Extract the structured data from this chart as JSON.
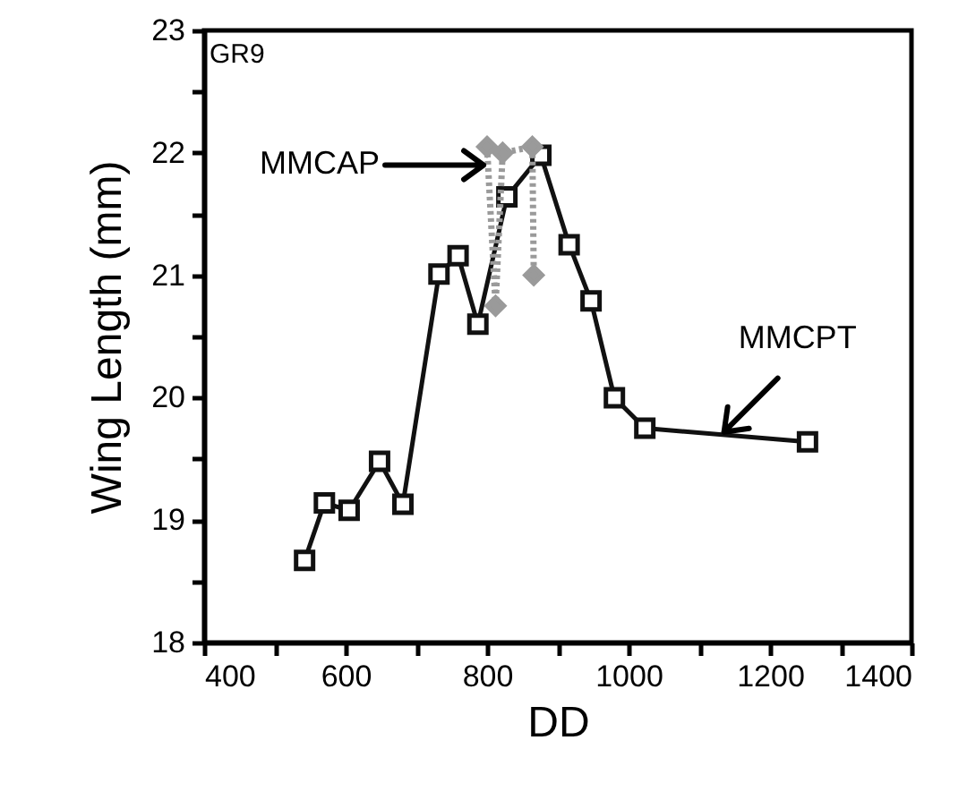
{
  "chart_data": {
    "type": "line",
    "xlabel": "DD",
    "ylabel": "Wing Length (mm)",
    "xlim": [
      400,
      1400
    ],
    "xticks": [
      400,
      {
        "value": 500,
        "label": null
      },
      600,
      {
        "value": 700,
        "label": null
      },
      800,
      {
        "value": 900,
        "label": null
      },
      1000,
      {
        "value": 1100,
        "label": null
      },
      1200,
      {
        "value": 1300,
        "label": null
      },
      1400
    ],
    "ylim": [
      18,
      23
    ],
    "yticks": [
      18,
      {
        "value": 18.5,
        "label": null
      },
      19,
      {
        "value": 19.5,
        "label": null
      },
      20,
      {
        "value": 20.5,
        "label": null
      },
      21,
      {
        "value": 21.5,
        "label": null
      },
      22,
      {
        "value": 22.5,
        "label": null
      },
      23
    ],
    "grid": false,
    "legend": false,
    "line_style": "solid",
    "annotations": [
      "GR9",
      {
        "text": "MMCAP",
        "x": 795,
        "y": 21.9
      },
      {
        "text": "MMCPT",
        "x": 1135,
        "y": 19.72
      }
    ],
    "series": [
      {
        "color": "#111111",
        "marker": "square",
        "x": [
          542,
          570,
          605,
          648,
          681,
          732,
          759,
          787,
          828,
          876,
          916,
          947,
          980,
          1023,
          1253
        ],
        "values": [
          18.67,
          19.14,
          19.08,
          19.48,
          19.13,
          21.01,
          21.16,
          20.6,
          21.64,
          21.98,
          21.25,
          20.79,
          20.0,
          19.75,
          19.64
        ]
      },
      {
        "color": "#9a9a9a",
        "marker": "diamond",
        "line_style": "dotted",
        "x": [
          800,
          812,
          822,
          864,
          866
        ],
        "values": [
          22.05,
          20.75,
          22.0,
          22.05,
          21.0
        ]
      }
    ]
  }
}
